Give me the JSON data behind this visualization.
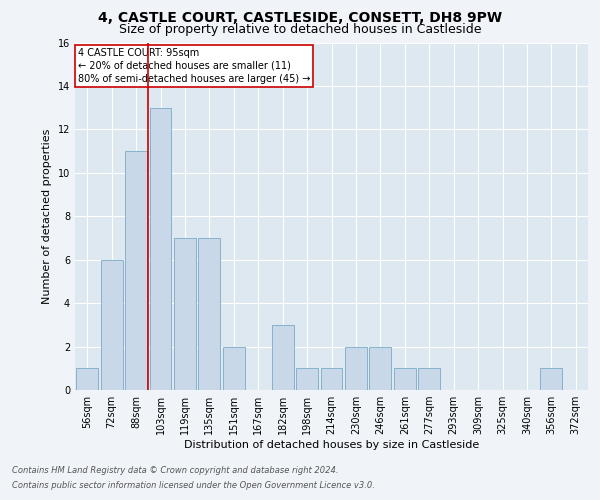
{
  "title_line1": "4, CASTLE COURT, CASTLESIDE, CONSETT, DH8 9PW",
  "title_line2": "Size of property relative to detached houses in Castleside",
  "categories": [
    "56sqm",
    "72sqm",
    "88sqm",
    "103sqm",
    "119sqm",
    "135sqm",
    "151sqm",
    "167sqm",
    "182sqm",
    "198sqm",
    "214sqm",
    "230sqm",
    "246sqm",
    "261sqm",
    "277sqm",
    "293sqm",
    "309sqm",
    "325sqm",
    "340sqm",
    "356sqm",
    "372sqm"
  ],
  "values": [
    1,
    6,
    11,
    13,
    7,
    7,
    2,
    0,
    3,
    1,
    1,
    2,
    2,
    1,
    1,
    0,
    0,
    0,
    0,
    1,
    0
  ],
  "bar_color": "#c8d8e8",
  "bar_edge_color": "#7aaac8",
  "bar_edge_width": 0.6,
  "red_line_x": 2.5,
  "annotation_title": "4 CASTLE COURT: 95sqm",
  "annotation_line1": "← 20% of detached houses are smaller (11)",
  "annotation_line2": "80% of semi-detached houses are larger (45) →",
  "annotation_box_color": "#ffffff",
  "annotation_box_edge": "#cc0000",
  "red_line_color": "#cc0000",
  "ylabel": "Number of detached properties",
  "xlabel": "Distribution of detached houses by size in Castleside",
  "ylim": [
    0,
    16
  ],
  "yticks": [
    0,
    2,
    4,
    6,
    8,
    10,
    12,
    14,
    16
  ],
  "background_color": "#dde8f0",
  "plot_bg_color": "#dde8f0",
  "footer_line1": "Contains HM Land Registry data © Crown copyright and database right 2024.",
  "footer_line2": "Contains public sector information licensed under the Open Government Licence v3.0.",
  "title_fontsize": 10,
  "subtitle_fontsize": 9,
  "axis_label_fontsize": 8,
  "tick_fontsize": 7,
  "annotation_fontsize": 7,
  "footer_fontsize": 6
}
